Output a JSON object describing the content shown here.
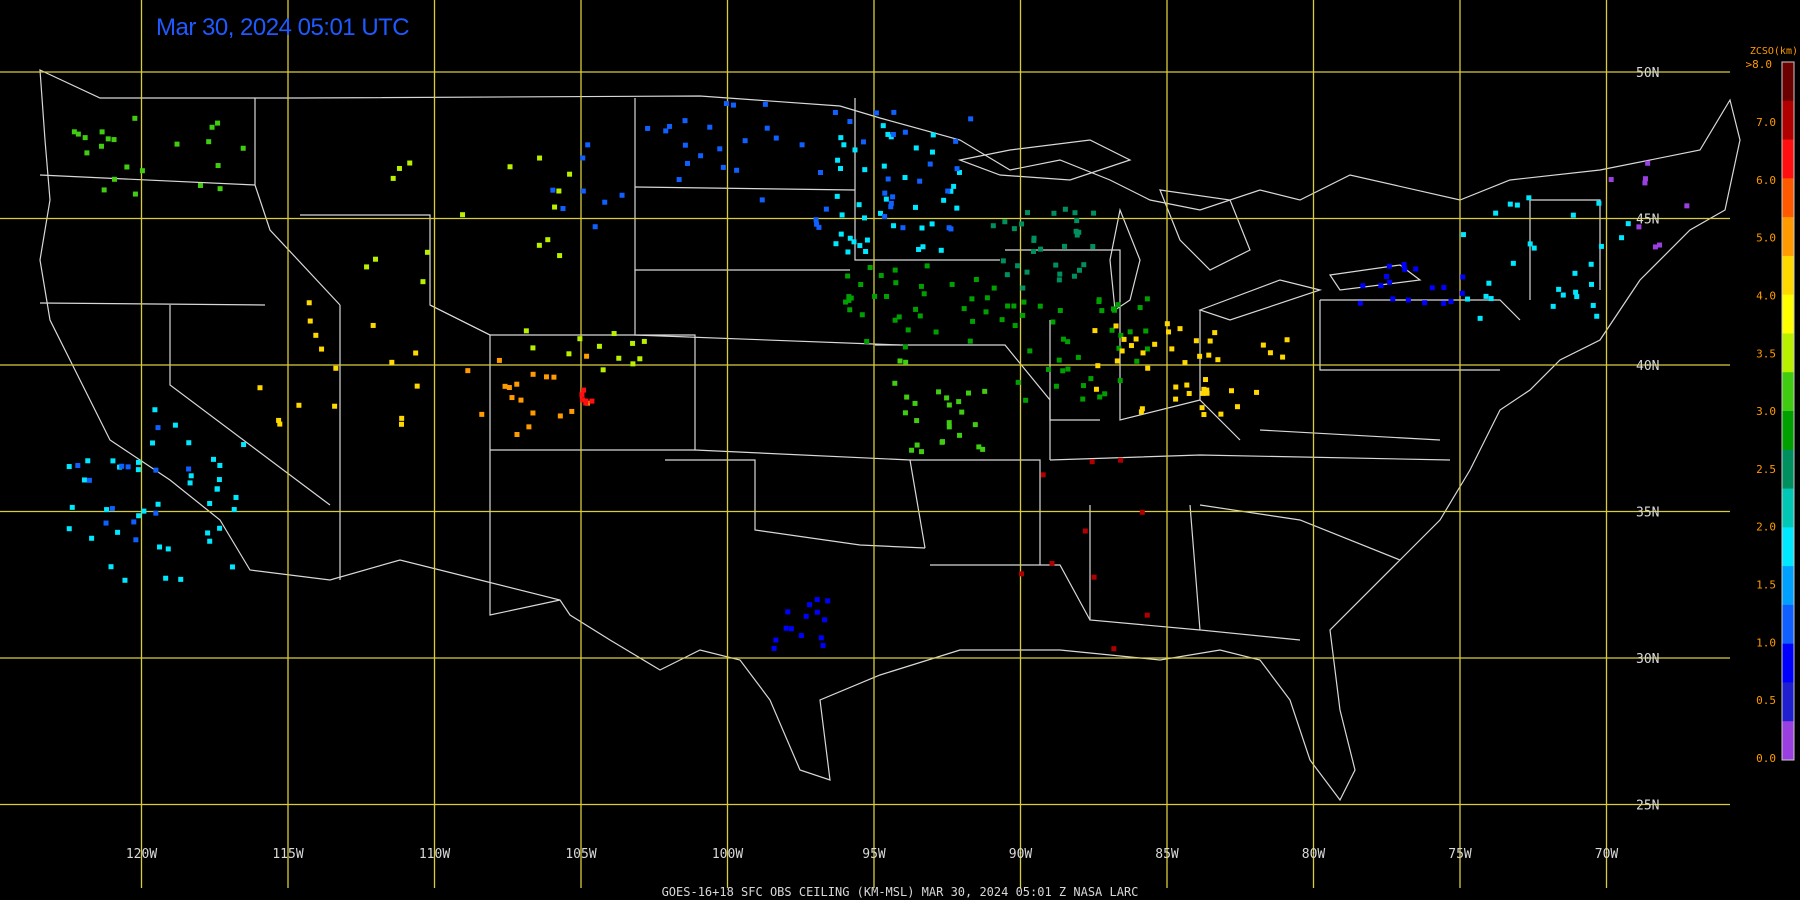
{
  "title": "Mar 30, 2024 05:01 UTC",
  "footer": "GOES-16+18  SFC OBS CEILING (KM-MSL)   MAR 30, 2024 05:01 Z   NASA LARC",
  "grid": {
    "color": "#d8cc3a",
    "lat_labels": [
      "50N",
      "45N",
      "40N",
      "35N",
      "30N",
      "25N"
    ],
    "lon_labels": [
      "120W",
      "115W",
      "110W",
      "105W",
      "100W",
      "95W",
      "90W",
      "85W",
      "80W",
      "75W",
      "70W"
    ]
  },
  "legend": {
    "title": "ZCSO(km)",
    "top_label": ">8.0",
    "tick_labels": [
      "7.0",
      "6.0",
      "5.0",
      "4.0",
      "3.5",
      "3.0",
      "2.5",
      "2.0",
      "1.5",
      "1.0",
      "0.5",
      "0.0"
    ],
    "colors": [
      "#6b0000",
      "#b00000",
      "#ff1010",
      "#ff5a00",
      "#ff9a00",
      "#ffd800",
      "#ffff00",
      "#b8f000",
      "#40cc10",
      "#00a000",
      "#009060",
      "#00c8b4",
      "#00e8ff",
      "#00a0ff",
      "#1060ff",
      "#0000ff",
      "#2020d0",
      "#9a40e0"
    ]
  },
  "clusters": [
    {
      "name": "pacific-northwest",
      "color": "#40cc10",
      "lat": [
        45.5,
        48.5
      ],
      "lon": [
        -123.5,
        -116.5
      ],
      "n": 22
    },
    {
      "name": "california-coast",
      "color": "#00e8ff",
      "lat": [
        32.6,
        38.5
      ],
      "lon": [
        -122.5,
        -116.5
      ],
      "n": 40
    },
    {
      "name": "california-blue",
      "color": "#1060ff",
      "lat": [
        33.5,
        38.0
      ],
      "lon": [
        -122.8,
        -118.0
      ],
      "n": 12
    },
    {
      "name": "nevada-utah",
      "color": "#ffd800",
      "lat": [
        37.5,
        42.5
      ],
      "lon": [
        -116.0,
        -110.5
      ],
      "n": 16
    },
    {
      "name": "colorado-orange",
      "color": "#ff9a00",
      "lat": [
        37.5,
        40.5
      ],
      "lon": [
        -109.0,
        -104.5
      ],
      "n": 18
    },
    {
      "name": "colorado-green",
      "color": "#b8f000",
      "lat": [
        39.8,
        41.2
      ],
      "lon": [
        -107.0,
        -102.8
      ],
      "n": 12
    },
    {
      "name": "montana-wyoming",
      "color": "#b8f000",
      "lat": [
        42.5,
        48.0
      ],
      "lon": [
        -113.0,
        -105.0
      ],
      "n": 16
    },
    {
      "name": "dakotas-blue",
      "color": "#1060ff",
      "lat": [
        44.5,
        49.0
      ],
      "lon": [
        -106.0,
        -96.8
      ],
      "n": 30
    },
    {
      "name": "minnesota-cyan",
      "color": "#00e8ff",
      "lat": [
        43.8,
        48.2
      ],
      "lon": [
        -96.5,
        -92.0
      ],
      "n": 40
    },
    {
      "name": "minnesota-blue",
      "color": "#1060ff",
      "lat": [
        44.0,
        48.8
      ],
      "lon": [
        -97.0,
        -91.5
      ],
      "n": 25
    },
    {
      "name": "iowa-green",
      "color": "#00a000",
      "lat": [
        40.6,
        43.5
      ],
      "lon": [
        -96.0,
        -90.5
      ],
      "n": 35
    },
    {
      "name": "wisconsin-green",
      "color": "#009060",
      "lat": [
        42.6,
        45.5
      ],
      "lon": [
        -91.0,
        -87.5
      ],
      "n": 30
    },
    {
      "name": "illinois-green",
      "color": "#00a000",
      "lat": [
        38.5,
        42.3
      ],
      "lon": [
        -90.5,
        -85.5
      ],
      "n": 40
    },
    {
      "name": "indiana-yellow",
      "color": "#ffd800",
      "lat": [
        38.5,
        41.5
      ],
      "lon": [
        -87.5,
        -84.0
      ],
      "n": 18
    },
    {
      "name": "missouri-green",
      "color": "#40cc10",
      "lat": [
        37.0,
        40.5
      ],
      "lon": [
        -94.5,
        -91.0
      ],
      "n": 25
    },
    {
      "name": "ohio-yellow",
      "color": "#ffd800",
      "lat": [
        39.0,
        41.5
      ],
      "lon": [
        -84.0,
        -80.5
      ],
      "n": 14
    },
    {
      "name": "new-york-blue",
      "color": "#0000ff",
      "lat": [
        42.0,
        43.5
      ],
      "lon": [
        -78.5,
        -74.5
      ],
      "n": 18
    },
    {
      "name": "new-england-cyan",
      "color": "#00e8ff",
      "lat": [
        41.5,
        45.8
      ],
      "lon": [
        -75.0,
        -69.0
      ],
      "n": 28
    },
    {
      "name": "texas-blue",
      "color": "#0000ff",
      "lat": [
        30.3,
        32.0
      ],
      "lon": [
        -98.5,
        -96.5
      ],
      "n": 14
    },
    {
      "name": "plains-red",
      "color": "#ff1010",
      "lat": [
        38.2,
        39.2
      ],
      "lon": [
        -105.0,
        -104.4
      ],
      "n": 6
    },
    {
      "name": "southeast-darkred",
      "color": "#b00000",
      "lat": [
        30.0,
        37.0
      ],
      "lon": [
        -91.0,
        -85.5
      ],
      "n": 10
    },
    {
      "name": "kentucky-yellow",
      "color": "#ffd800",
      "lat": [
        38.2,
        40.0
      ],
      "lon": [
        -86.0,
        -82.5
      ],
      "n": 12
    },
    {
      "name": "maine-purple",
      "color": "#9a40e0",
      "lat": [
        44.0,
        47.5
      ],
      "lon": [
        -70.0,
        -67.0
      ],
      "n": 8
    }
  ]
}
